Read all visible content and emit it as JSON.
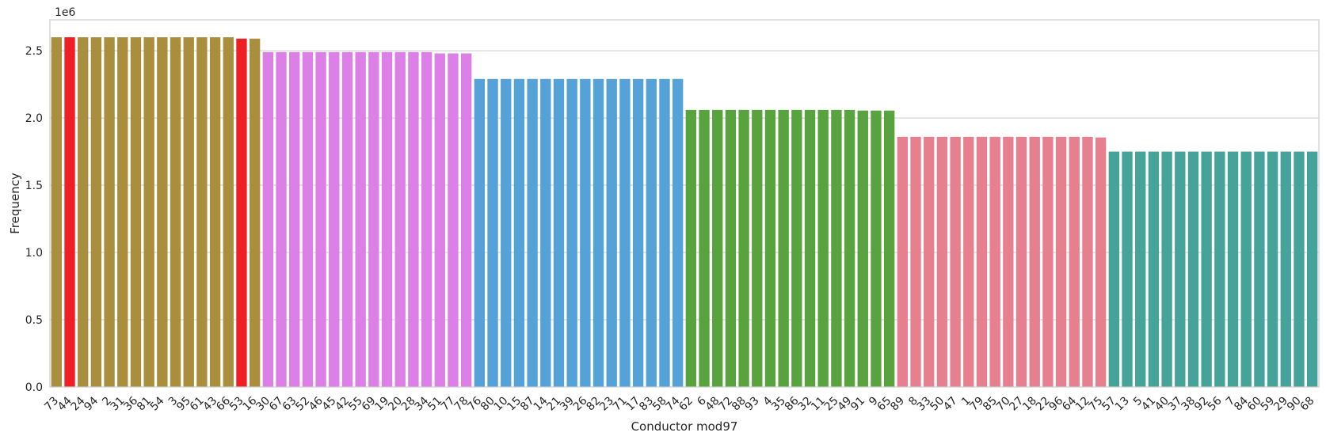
{
  "chart_data": {
    "type": "bar",
    "xlabel": "Conductor mod97",
    "ylabel": "Frequency",
    "offset_label": "1e6",
    "ylim": [
      0,
      2.73
    ],
    "yticks": [
      0.0,
      0.5,
      1.0,
      1.5,
      2.0,
      2.5
    ],
    "ytick_labels": [
      "0.0",
      "0.5",
      "1.0",
      "1.5",
      "2.0",
      "2.5"
    ],
    "grid": true,
    "legend": "none",
    "categories": [
      "73",
      "44",
      "24",
      "94",
      "2",
      "31",
      "36",
      "81",
      "54",
      "3",
      "95",
      "61",
      "43",
      "66",
      "53",
      "16",
      "30",
      "67",
      "63",
      "52",
      "46",
      "45",
      "42",
      "55",
      "69",
      "19",
      "20",
      "28",
      "34",
      "51",
      "77",
      "78",
      "76",
      "80",
      "10",
      "15",
      "87",
      "14",
      "21",
      "39",
      "26",
      "82",
      "23",
      "71",
      "17",
      "83",
      "58",
      "74",
      "62",
      "6",
      "48",
      "72",
      "88",
      "93",
      "4",
      "35",
      "86",
      "32",
      "11",
      "25",
      "49",
      "91",
      "9",
      "65",
      "89",
      "8",
      "33",
      "50",
      "47",
      "1",
      "79",
      "85",
      "70",
      "27",
      "18",
      "22",
      "96",
      "64",
      "12",
      "75",
      "57",
      "13",
      "5",
      "41",
      "40",
      "37",
      "38",
      "92",
      "56",
      "7",
      "84",
      "60",
      "59",
      "29",
      "90",
      "68"
    ],
    "values": [
      2.6,
      2.6,
      2.6,
      2.6,
      2.6,
      2.6,
      2.6,
      2.6,
      2.6,
      2.6,
      2.6,
      2.6,
      2.6,
      2.6,
      2.59,
      2.59,
      2.49,
      2.49,
      2.49,
      2.49,
      2.49,
      2.49,
      2.49,
      2.49,
      2.49,
      2.49,
      2.49,
      2.49,
      2.49,
      2.48,
      2.48,
      2.48,
      2.29,
      2.29,
      2.29,
      2.29,
      2.29,
      2.29,
      2.29,
      2.29,
      2.29,
      2.29,
      2.29,
      2.29,
      2.29,
      2.29,
      2.29,
      2.29,
      2.06,
      2.06,
      2.06,
      2.06,
      2.06,
      2.06,
      2.06,
      2.06,
      2.06,
      2.06,
      2.06,
      2.06,
      2.06,
      2.055,
      2.055,
      2.055,
      1.86,
      1.86,
      1.86,
      1.86,
      1.86,
      1.86,
      1.86,
      1.86,
      1.86,
      1.86,
      1.86,
      1.86,
      1.86,
      1.86,
      1.86,
      1.855,
      1.75,
      1.75,
      1.75,
      1.75,
      1.75,
      1.75,
      1.75,
      1.75,
      1.75,
      1.75,
      1.75,
      1.75,
      1.75,
      1.75,
      1.75,
      1.75
    ],
    "value_multiplier": 1000000,
    "group_colors": [
      "#a98e3e",
      "#dc7fe6",
      "#55a2d8",
      "#58a33d",
      "#e6808f",
      "#45a39a"
    ],
    "group_sizes": [
      16,
      16,
      16,
      16,
      16,
      16
    ],
    "highlight_color": "#ee2026",
    "highlighted_categories": [
      "44",
      "53"
    ],
    "colors": {
      "background": "#ffffff",
      "grid": "#cccccc",
      "frame": "#cccccc",
      "text": "#262626"
    }
  }
}
